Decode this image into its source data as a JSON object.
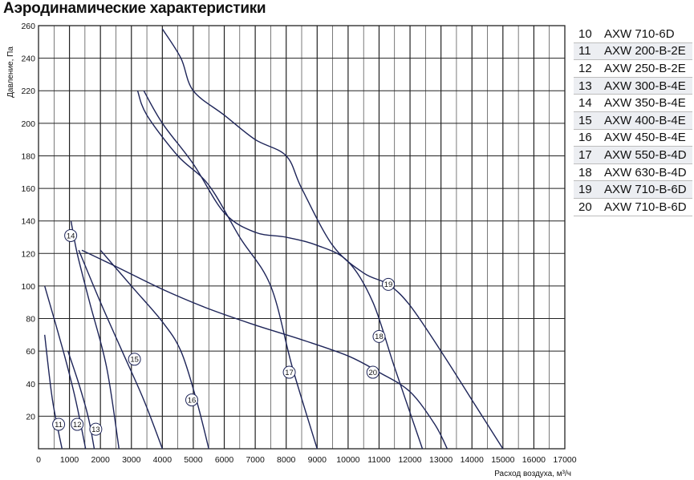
{
  "title": "Аэродинамические характеристики",
  "chart_data": {
    "type": "line",
    "title": "Аэродинамические характеристики",
    "xlabel": "Расход воздуха, м³/ч",
    "ylabel": "Давление, Па",
    "xlim": [
      0,
      17000
    ],
    "ylim": [
      0,
      260
    ],
    "grid": true,
    "x_ticks": [
      0,
      1000,
      2000,
      3000,
      4000,
      5000,
      6000,
      7000,
      8000,
      9000,
      10000,
      11000,
      12000,
      13000,
      14000,
      15000,
      16000,
      17000
    ],
    "y_ticks": [
      20,
      40,
      60,
      80,
      100,
      120,
      140,
      160,
      180,
      200,
      220,
      240,
      260
    ],
    "x_tick_labels": [
      "0",
      "1000",
      "2000",
      "3000",
      "4000",
      "5000",
      "6000",
      "7000",
      "8000",
      "9000",
      "10000",
      "11000",
      "12000",
      "13000",
      "14000",
      "15000",
      "16000",
      "17000"
    ],
    "y_tick_labels": [
      "20",
      "40",
      "60",
      "80",
      "100",
      "120",
      "140",
      "160",
      "180",
      "200",
      "220",
      "240",
      "260"
    ],
    "series": [
      {
        "name": "11",
        "marker": {
          "x": 650,
          "y": 15
        },
        "points": [
          [
            200,
            70
          ],
          [
            450,
            30
          ],
          [
            760,
            0
          ]
        ]
      },
      {
        "name": "12",
        "marker": {
          "x": 1250,
          "y": 15
        },
        "points": [
          [
            200,
            100
          ],
          [
            800,
            60
          ],
          [
            1200,
            30
          ],
          [
            1520,
            0
          ]
        ]
      },
      {
        "name": "13",
        "marker": {
          "x": 1850,
          "y": 12
        },
        "points": [
          [
            950,
            60
          ],
          [
            1300,
            40
          ],
          [
            1600,
            20
          ],
          [
            1800,
            0
          ]
        ]
      },
      {
        "name": "14",
        "marker": {
          "x": 1040,
          "y": 131
        },
        "points": [
          [
            1050,
            140
          ],
          [
            1250,
            120
          ],
          [
            1650,
            90
          ],
          [
            2200,
            50
          ],
          [
            2600,
            0
          ]
        ]
      },
      {
        "name": "15",
        "marker": {
          "x": 3100,
          "y": 55
        },
        "points": [
          [
            1300,
            122
          ],
          [
            2000,
            90
          ],
          [
            2700,
            60
          ],
          [
            3400,
            30
          ],
          [
            4000,
            0
          ]
        ]
      },
      {
        "name": "16",
        "marker": {
          "x": 4950,
          "y": 30
        },
        "points": [
          [
            2000,
            122
          ],
          [
            3000,
            100
          ],
          [
            4000,
            78
          ],
          [
            4600,
            60
          ],
          [
            5100,
            30
          ],
          [
            5500,
            0
          ]
        ]
      },
      {
        "name": "17",
        "marker": {
          "x": 8100,
          "y": 47
        },
        "points": [
          [
            3200,
            220
          ],
          [
            3500,
            205
          ],
          [
            4500,
            180
          ],
          [
            5500,
            162
          ],
          [
            6500,
            130
          ],
          [
            7500,
            100
          ],
          [
            8200,
            50
          ],
          [
            9000,
            0
          ]
        ]
      },
      {
        "name": "18",
        "marker": {
          "x": 11000,
          "y": 69
        },
        "points": [
          [
            3400,
            220
          ],
          [
            4000,
            200
          ],
          [
            5000,
            175
          ],
          [
            6000,
            145
          ],
          [
            7000,
            133
          ],
          [
            8000,
            130
          ],
          [
            9000,
            125
          ],
          [
            10000,
            115
          ],
          [
            10800,
            90
          ],
          [
            11500,
            50
          ],
          [
            12400,
            0
          ]
        ]
      },
      {
        "name": "19",
        "marker": {
          "x": 11300,
          "y": 101
        },
        "points": [
          [
            4000,
            258
          ],
          [
            4600,
            240
          ],
          [
            5000,
            220
          ],
          [
            6000,
            205
          ],
          [
            7000,
            190
          ],
          [
            8000,
            180
          ],
          [
            8500,
            160
          ],
          [
            9500,
            125
          ],
          [
            10500,
            108
          ],
          [
            11300,
            101
          ],
          [
            12000,
            88
          ],
          [
            13000,
            60
          ],
          [
            14000,
            30
          ],
          [
            15000,
            0
          ]
        ]
      },
      {
        "name": "20",
        "marker": {
          "x": 10800,
          "y": 47
        },
        "points": [
          [
            1400,
            122
          ],
          [
            2500,
            112
          ],
          [
            4000,
            98
          ],
          [
            5500,
            86
          ],
          [
            7000,
            76
          ],
          [
            8500,
            67
          ],
          [
            10000,
            57
          ],
          [
            11000,
            47
          ],
          [
            12000,
            35
          ],
          [
            12800,
            15
          ],
          [
            13200,
            0
          ]
        ]
      }
    ]
  },
  "legend": [
    {
      "num": "10",
      "name": "AXW 710-6D"
    },
    {
      "num": "11",
      "name": "AXW 200-B-2E"
    },
    {
      "num": "12",
      "name": "AXW 250-B-2E"
    },
    {
      "num": "13",
      "name": "AXW 300-B-4E"
    },
    {
      "num": "14",
      "name": "AXW 350-B-4E"
    },
    {
      "num": "15",
      "name": "AXW 400-B-4E"
    },
    {
      "num": "16",
      "name": "AXW 450-B-4E"
    },
    {
      "num": "17",
      "name": "AXW 550-B-4D"
    },
    {
      "num": "18",
      "name": "AXW 630-B-4D"
    },
    {
      "num": "19",
      "name": "AXW 710-B-6D"
    },
    {
      "num": "20",
      "name": "AXW 710-B-6D"
    }
  ],
  "colors": {
    "curve": "#1e2559",
    "grid": "#222222",
    "legend_shade": "#eceef2"
  }
}
